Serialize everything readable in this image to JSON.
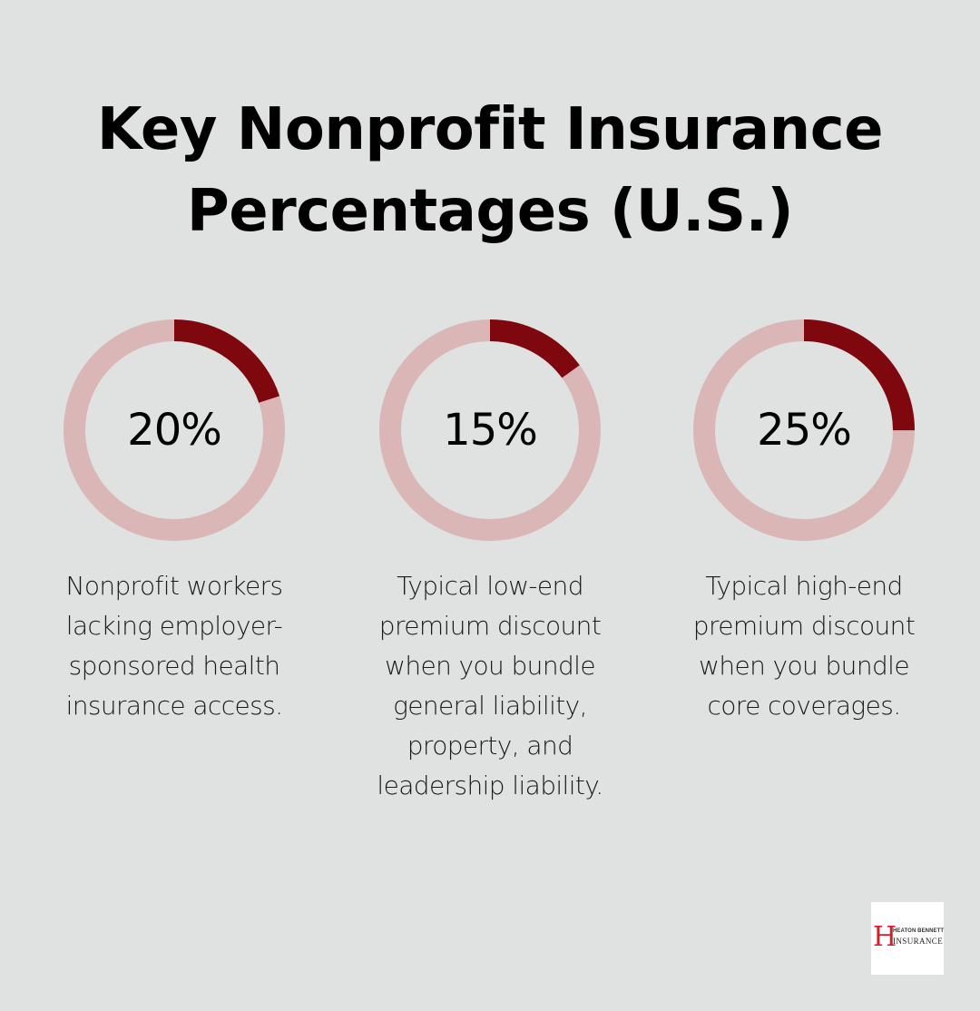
{
  "title_line1": "Key Nonprofit Insurance",
  "title_line2": "Percentages (U.S.)",
  "colors": {
    "background": "#e0e2e1",
    "ring_track": "#dab6b7",
    "ring_fill": "#7e080e",
    "text": "#000000"
  },
  "stats": [
    {
      "value": 20,
      "label": "20%",
      "desc": [
        "Nonprofit workers",
        "lacking employer-",
        "sponsored health",
        "insurance access."
      ]
    },
    {
      "value": 15,
      "label": "15%",
      "desc": [
        "Typical low-end",
        "premium discount",
        "when you bundle",
        "general liability,",
        "property, and",
        "leadership liability."
      ]
    },
    {
      "value": 25,
      "label": "25%",
      "desc": [
        "Typical high-end",
        "premium discount",
        "when you bundle",
        "core coverages."
      ]
    }
  ],
  "logo": {
    "letter": "H",
    "top_text": "HEATON BENNETT",
    "bottom_text": "INSURANCE"
  },
  "chart_data": {
    "type": "pie",
    "subtype": "donut-progress",
    "title": "Key Nonprofit Insurance Percentages (U.S.)",
    "categories": [
      "Nonprofit workers lacking employer-sponsored health insurance access.",
      "Typical low-end premium discount when you bundle general liability, property, and leadership liability.",
      "Typical high-end premium discount when you bundle core coverages."
    ],
    "values": [
      20,
      15,
      25
    ],
    "unit": "%",
    "max": 100
  }
}
